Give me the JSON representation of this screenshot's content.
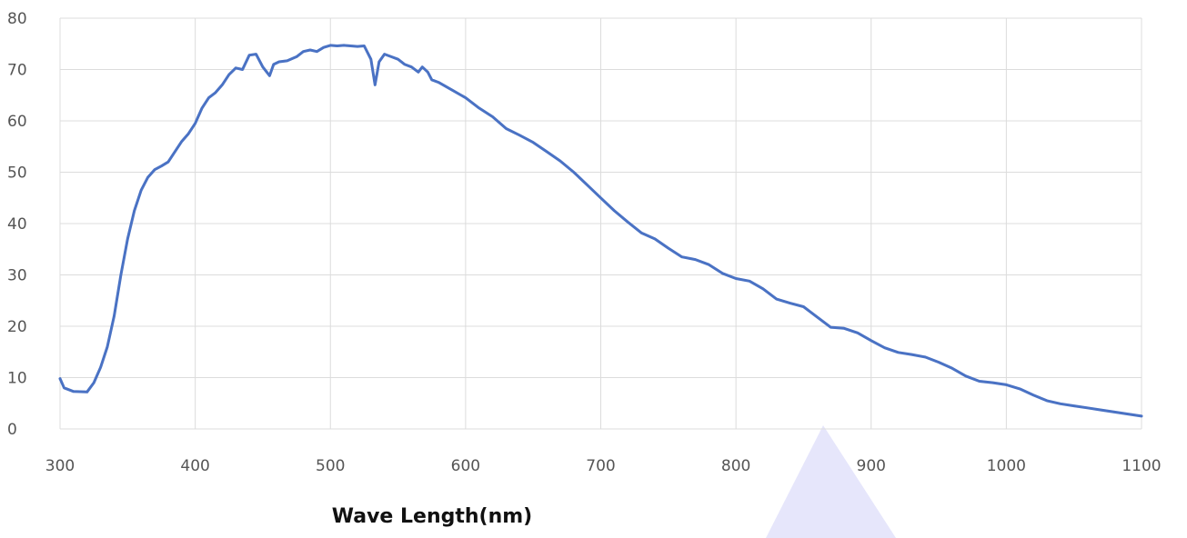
{
  "chart_data": {
    "type": "line",
    "title": "",
    "xlabel": "Wave Length(nm)",
    "ylabel": "",
    "xlim": [
      300,
      1100
    ],
    "ylim": [
      0,
      80
    ],
    "xticks": [
      300,
      400,
      500,
      600,
      700,
      800,
      900,
      1000,
      1100
    ],
    "yticks": [
      0,
      10,
      20,
      30,
      40,
      50,
      60,
      70,
      80
    ],
    "grid": true,
    "legend": "none",
    "series": [
      {
        "color": "#4a72c4",
        "x": [
          300,
          303,
          310,
          320,
          325,
          330,
          335,
          340,
          345,
          350,
          355,
          360,
          365,
          370,
          375,
          380,
          385,
          390,
          395,
          400,
          405,
          410,
          415,
          420,
          425,
          430,
          435,
          440,
          445,
          450,
          455,
          458,
          462,
          468,
          475,
          480,
          485,
          490,
          495,
          500,
          505,
          510,
          515,
          520,
          525,
          530,
          533,
          536,
          540,
          545,
          550,
          555,
          560,
          565,
          568,
          572,
          575,
          580,
          590,
          600,
          610,
          620,
          630,
          640,
          650,
          660,
          670,
          680,
          690,
          700,
          710,
          720,
          730,
          740,
          750,
          760,
          770,
          780,
          790,
          800,
          810,
          820,
          830,
          840,
          850,
          860,
          870,
          880,
          890,
          900,
          910,
          920,
          930,
          940,
          950,
          960,
          970,
          980,
          990,
          1000,
          1010,
          1020,
          1030,
          1040,
          1050,
          1060,
          1070,
          1080,
          1090,
          1100
        ],
        "y": [
          9.8,
          8,
          7.3,
          7.2,
          9,
          12,
          16,
          22,
          30,
          37,
          42.5,
          46.5,
          49,
          50.5,
          51.2,
          52,
          54,
          56,
          57.5,
          59.5,
          62.5,
          64.5,
          65.5,
          67,
          69,
          70.3,
          70,
          72.8,
          73,
          70.5,
          68.8,
          71,
          71.5,
          71.7,
          72.5,
          73.5,
          73.8,
          73.5,
          74.3,
          74.7,
          74.6,
          74.7,
          74.6,
          74.5,
          74.6,
          72,
          67,
          71.5,
          73,
          72.5,
          72,
          71,
          70.5,
          69.5,
          70.5,
          69.5,
          68,
          67.5,
          66,
          64.5,
          62.5,
          60.8,
          58.5,
          57.2,
          55.8,
          54,
          52.2,
          50,
          47.5,
          45,
          42.5,
          40.3,
          38.2,
          37,
          35.2,
          33.5,
          33,
          32,
          30.3,
          29.3,
          28.8,
          27.3,
          25.3,
          24.5,
          23.8,
          21.8,
          19.8,
          19.6,
          18.7,
          17.2,
          15.8,
          14.9,
          14.5,
          14,
          13,
          11.8,
          10.3,
          9.3,
          9,
          8.6,
          7.8,
          6.6,
          5.5,
          4.9,
          4.5,
          4.1,
          3.7,
          3.3,
          2.9,
          2.5
        ]
      }
    ]
  }
}
